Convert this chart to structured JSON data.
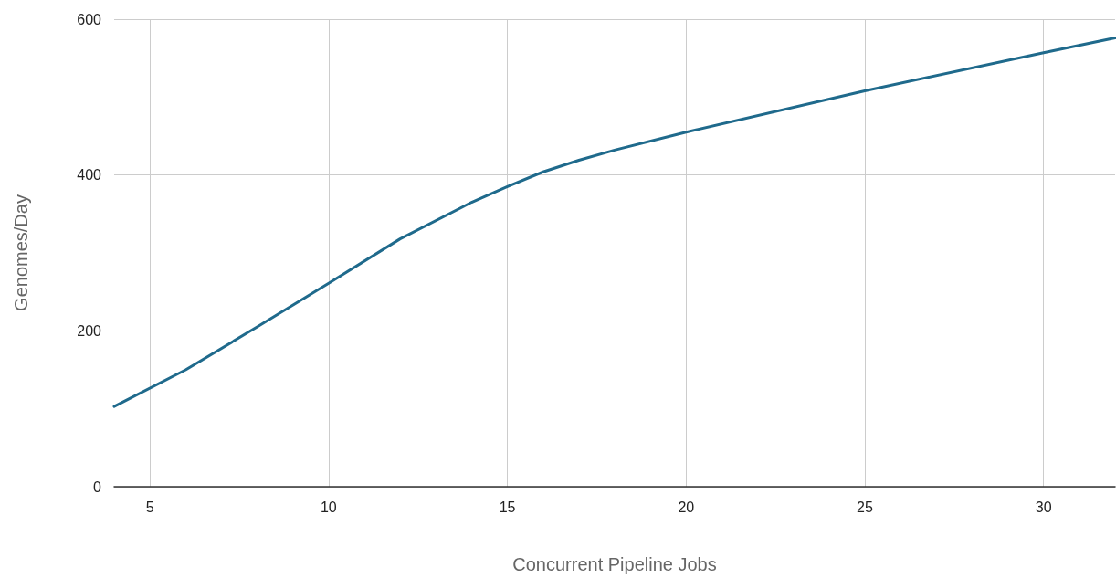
{
  "chart_data": {
    "type": "line",
    "xlabel": "Concurrent Pipeline Jobs",
    "ylabel": "Genomes/Day",
    "x": [
      4,
      6,
      8,
      10,
      12,
      14,
      15,
      16,
      17,
      18,
      20,
      25,
      30,
      32
    ],
    "series": [
      {
        "color": "#1f6a8c",
        "values": [
          103,
          150,
          205,
          261,
          318,
          365,
          385,
          404,
          419,
          432,
          455,
          508,
          557,
          576
        ]
      }
    ],
    "xlim": [
      4,
      32
    ],
    "xticks": [
      5,
      10,
      15,
      20,
      25,
      30
    ],
    "ylim": [
      0,
      600
    ],
    "yticks": [
      0,
      200,
      400,
      600
    ],
    "grid": true,
    "marker": "none",
    "line_style": "solid"
  }
}
